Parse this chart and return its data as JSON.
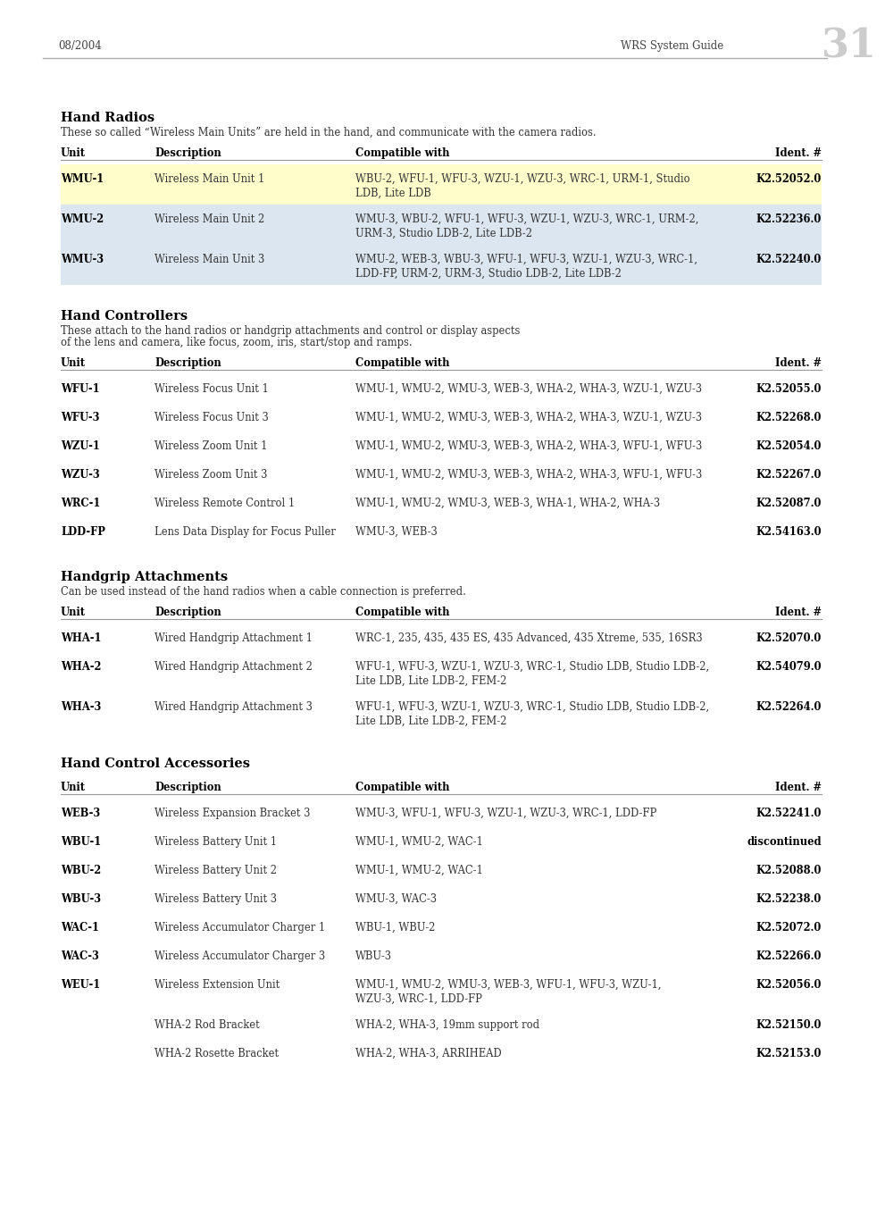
{
  "page_number": "31",
  "header_left": "08/2004",
  "header_right": "WRS System Guide",
  "background_color": "#ffffff",
  "sections": [
    {
      "title": "Hand Radios",
      "subtitle": "These so called “Wireless Main Units” are held in the hand, and communicate with the camera radios.",
      "subtitle2": "",
      "columns": [
        "Unit",
        "Description",
        "Compatible with",
        "Ident. #"
      ],
      "rows": [
        {
          "unit": "WMU-1",
          "description": "Wireless Main Unit 1",
          "compatible": "WBU-2, WFU-1, WFU-3, WZU-1, WZU-3, WRC-1, URM-1, Studio\nLDB, Lite LDB",
          "ident": "K2.52052.0",
          "bg": "#ffffcc"
        },
        {
          "unit": "WMU-2",
          "description": "Wireless Main Unit 2",
          "compatible": "WMU-3, WBU-2, WFU-1, WFU-3, WZU-1, WZU-3, WRC-1, URM-2,\nURM-3, Studio LDB-2, Lite LDB-2",
          "ident": "K2.52236.0",
          "bg": "#dce6f1"
        },
        {
          "unit": "WMU-3",
          "description": "Wireless Main Unit 3",
          "compatible": "WMU-2, WEB-3, WBU-3, WFU-1, WFU-3, WZU-1, WZU-3, WRC-1,\nLDD-FP, URM-2, URM-3, Studio LDB-2, Lite LDB-2",
          "ident": "K2.52240.0",
          "bg": "#dce6f1"
        }
      ]
    },
    {
      "title": "Hand Controllers",
      "subtitle": "These attach to the hand radios or handgrip attachments and control or display aspects",
      "subtitle2": "of the lens and camera, like focus, zoom, iris, start/stop and ramps.",
      "columns": [
        "Unit",
        "Description",
        "Compatible with",
        "Ident. #"
      ],
      "rows": [
        {
          "unit": "WFU-1",
          "description": "Wireless Focus Unit 1",
          "compatible": "WMU-1, WMU-2, WMU-3, WEB-3, WHA-2, WHA-3, WZU-1, WZU-3",
          "ident": "K2.52055.0",
          "bg": "#ffffff"
        },
        {
          "unit": "WFU-3",
          "description": "Wireless Focus Unit 3",
          "compatible": "WMU-1, WMU-2, WMU-3, WEB-3, WHA-2, WHA-3, WZU-1, WZU-3",
          "ident": "K2.52268.0",
          "bg": "#ffffff"
        },
        {
          "unit": "WZU-1",
          "description": "Wireless Zoom Unit 1",
          "compatible": "WMU-1, WMU-2, WMU-3, WEB-3, WHA-2, WHA-3, WFU-1, WFU-3",
          "ident": "K2.52054.0",
          "bg": "#ffffff"
        },
        {
          "unit": "WZU-3",
          "description": "Wireless Zoom Unit 3",
          "compatible": "WMU-1, WMU-2, WMU-3, WEB-3, WHA-2, WHA-3, WFU-1, WFU-3",
          "ident": "K2.52267.0",
          "bg": "#ffffff"
        },
        {
          "unit": "WRC-1",
          "description": "Wireless Remote Control 1",
          "compatible": "WMU-1, WMU-2, WMU-3, WEB-3, WHA-1, WHA-2, WHA-3",
          "ident": "K2.52087.0",
          "bg": "#ffffff"
        },
        {
          "unit": "LDD-FP",
          "description": "Lens Data Display for Focus Puller",
          "compatible": "WMU-3, WEB-3",
          "ident": "K2.54163.0",
          "bg": "#ffffff"
        }
      ]
    },
    {
      "title": "Handgrip Attachments",
      "subtitle": "Can be used instead of the hand radios when a cable connection is preferred.",
      "subtitle2": "",
      "columns": [
        "Unit",
        "Description",
        "Compatible with",
        "Ident. #"
      ],
      "rows": [
        {
          "unit": "WHA-1",
          "description": "Wired Handgrip Attachment 1",
          "compatible": "WRC-1, 235, 435, 435 ES, 435 Advanced, 435 Xtreme, 535, 16SR3",
          "ident": "K2.52070.0",
          "bg": "#ffffff"
        },
        {
          "unit": "WHA-2",
          "description": "Wired Handgrip Attachment 2",
          "compatible": "WFU-1, WFU-3, WZU-1, WZU-3, WRC-1, Studio LDB, Studio LDB-2,\nLite LDB, Lite LDB-2, FEM-2",
          "ident": "K2.54079.0",
          "bg": "#ffffff"
        },
        {
          "unit": "WHA-3",
          "description": "Wired Handgrip Attachment 3",
          "compatible": "WFU-1, WFU-3, WZU-1, WZU-3, WRC-1, Studio LDB, Studio LDB-2,\nLite LDB, Lite LDB-2, FEM-2",
          "ident": "K2.52264.0",
          "bg": "#ffffff"
        }
      ]
    },
    {
      "title": "Hand Control Accessories",
      "subtitle": "",
      "subtitle2": "",
      "columns": [
        "Unit",
        "Description",
        "Compatible with",
        "Ident. #"
      ],
      "rows": [
        {
          "unit": "WEB-3",
          "description": "Wireless Expansion Bracket 3",
          "compatible": "WMU-3, WFU-1, WFU-3, WZU-1, WZU-3, WRC-1, LDD-FP",
          "ident": "K2.52241.0",
          "bg": "#ffffff"
        },
        {
          "unit": "WBU-1",
          "description": "Wireless Battery Unit 1",
          "compatible": "WMU-1, WMU-2, WAC-1",
          "ident": "discontinued",
          "bg": "#ffffff"
        },
        {
          "unit": "WBU-2",
          "description": "Wireless Battery Unit 2",
          "compatible": "WMU-1, WMU-2, WAC-1",
          "ident": "K2.52088.0",
          "bg": "#ffffff"
        },
        {
          "unit": "WBU-3",
          "description": "Wireless Battery Unit 3",
          "compatible": "WMU-3, WAC-3",
          "ident": "K2.52238.0",
          "bg": "#ffffff"
        },
        {
          "unit": "WAC-1",
          "description": "Wireless Accumulator Charger 1",
          "compatible": "WBU-1, WBU-2",
          "ident": "K2.52072.0",
          "bg": "#ffffff"
        },
        {
          "unit": "WAC-3",
          "description": "Wireless Accumulator Charger 3",
          "compatible": "WBU-3",
          "ident": "K2.52266.0",
          "bg": "#ffffff"
        },
        {
          "unit": "WEU-1",
          "description": "Wireless Extension Unit",
          "compatible": "WMU-1, WMU-2, WMU-3, WEB-3, WFU-1, WFU-3, WZU-1,\nWZU-3, WRC-1, LDD-FP",
          "ident": "K2.52056.0",
          "bg": "#ffffff"
        },
        {
          "unit": "",
          "description": "WHA-2 Rod Bracket",
          "compatible": "WHA-2, WHA-3, 19mm support rod",
          "ident": "K2.52150.0",
          "bg": "#ffffff"
        },
        {
          "unit": "",
          "description": "WHA-2 Rosette Bracket",
          "compatible": "WHA-2, WHA-3, ARRIHEAD",
          "ident": "K2.52153.0",
          "bg": "#ffffff"
        }
      ]
    }
  ]
}
